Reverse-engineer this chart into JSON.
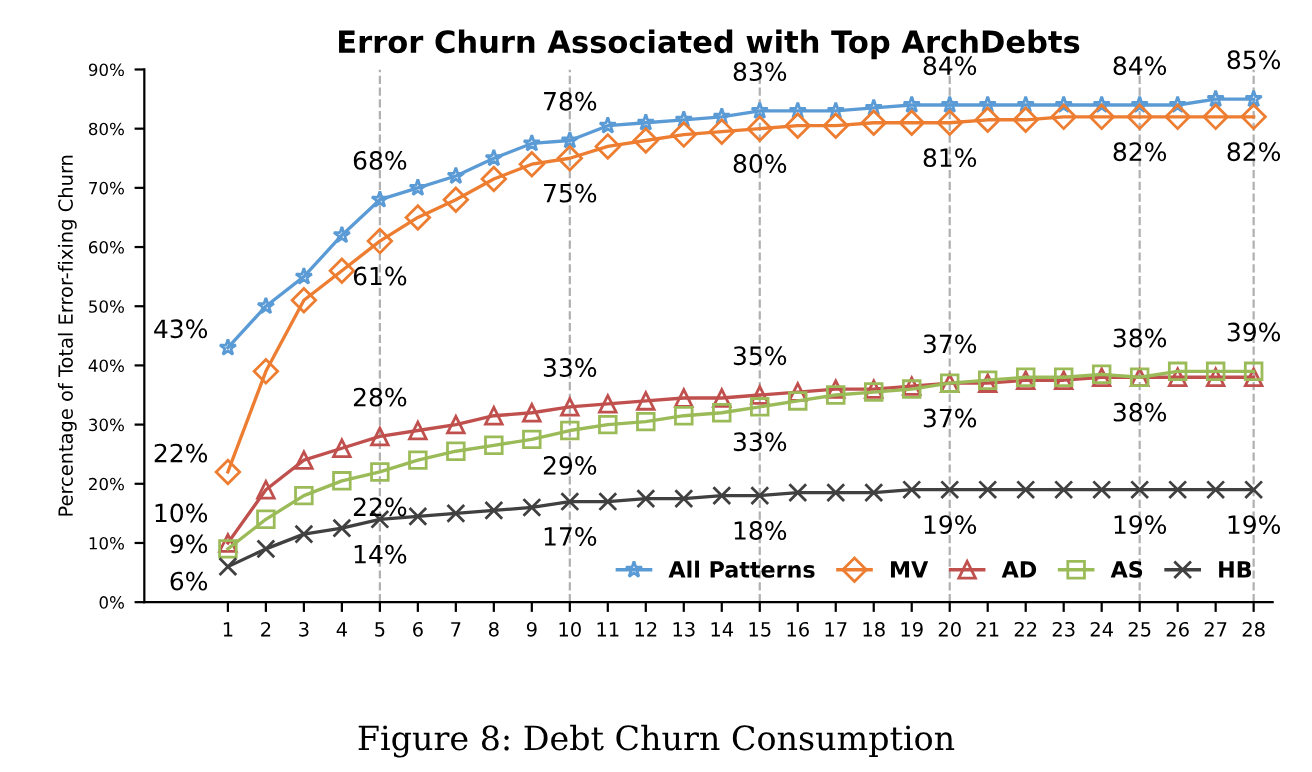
{
  "chart_data": {
    "type": "line",
    "title": "Error Churn Associated with Top ArchDebts",
    "ylabel": "Percentage of Total Error-fixing Churn",
    "categories": [
      "1",
      "2",
      "3",
      "4",
      "5",
      "6",
      "7",
      "8",
      "9",
      "10",
      "11",
      "12",
      "13",
      "14",
      "15",
      "16",
      "17",
      "18",
      "19",
      "20",
      "21",
      "22",
      "23",
      "24",
      "25",
      "26",
      "27",
      "28"
    ],
    "ylim": [
      0,
      90
    ],
    "yticks": [
      {
        "value": 0,
        "label": "0%"
      },
      {
        "value": 10,
        "label": "10%"
      },
      {
        "value": 20,
        "label": "20%"
      },
      {
        "value": 30,
        "label": "30%"
      },
      {
        "value": 40,
        "label": "40%"
      },
      {
        "value": 50,
        "label": "50%"
      },
      {
        "value": 60,
        "label": "60%"
      },
      {
        "value": 70,
        "label": "70%"
      },
      {
        "value": 80,
        "label": "80%"
      },
      {
        "value": 90,
        "label": "90%"
      }
    ],
    "grid": false,
    "legend": "bottom",
    "line_style": "solid",
    "ref_lines": [
      {
        "axis": "x",
        "value": "5",
        "color": "#b0b0b0",
        "line_style": "dashed"
      },
      {
        "axis": "x",
        "value": "10",
        "color": "#b0b0b0",
        "line_style": "dashed"
      },
      {
        "axis": "x",
        "value": "15",
        "color": "#b0b0b0",
        "line_style": "dashed"
      },
      {
        "axis": "x",
        "value": "20",
        "color": "#b0b0b0",
        "line_style": "dashed"
      },
      {
        "axis": "x",
        "value": "25",
        "color": "#b0b0b0",
        "line_style": "dashed"
      },
      {
        "axis": "x",
        "value": "28",
        "color": "#b0b0b0",
        "line_style": "dashed"
      }
    ],
    "series": [
      {
        "name": "All Patterns",
        "color": "#5b9bd5",
        "marker": "star",
        "values": [
          43,
          50,
          55,
          62,
          68,
          70,
          72,
          75,
          77.5,
          78,
          80.5,
          81,
          81.5,
          82,
          83,
          83,
          83,
          83.5,
          84,
          84,
          84,
          84,
          84,
          84,
          84,
          84,
          85,
          85
        ],
        "value_labels": [
          "43%",
          null,
          null,
          null,
          "68%",
          null,
          null,
          null,
          null,
          "78%",
          null,
          null,
          null,
          null,
          "83%",
          null,
          null,
          null,
          null,
          "84%",
          null,
          null,
          null,
          null,
          "84%",
          null,
          null,
          "85%"
        ]
      },
      {
        "name": "MV",
        "color": "#ed7d31",
        "marker": "diamond",
        "values": [
          22,
          39,
          51,
          56,
          61,
          65,
          68,
          71.5,
          74,
          75,
          77,
          78,
          79,
          79.5,
          80,
          80.5,
          80.5,
          81,
          81,
          81,
          81.5,
          81.5,
          82,
          82,
          82,
          82,
          82,
          82
        ],
        "value_labels": [
          "22%",
          null,
          null,
          null,
          "61%",
          null,
          null,
          null,
          null,
          "75%",
          null,
          null,
          null,
          null,
          "80%",
          null,
          null,
          null,
          null,
          "81%",
          null,
          null,
          null,
          null,
          "82%",
          null,
          null,
          "82%"
        ]
      },
      {
        "name": "AD",
        "color": "#c0504d",
        "marker": "triangle",
        "values": [
          10,
          19,
          24,
          26,
          28,
          29,
          30,
          31.5,
          32,
          33,
          33.5,
          34,
          34.5,
          34.5,
          35,
          35.5,
          36,
          36,
          36.5,
          37,
          37,
          37.5,
          37.5,
          38,
          38,
          38,
          38,
          38
        ],
        "value_labels": [
          "10%",
          null,
          null,
          null,
          "28%",
          null,
          null,
          null,
          null,
          "33%",
          null,
          null,
          null,
          null,
          "35%",
          null,
          null,
          null,
          null,
          "37%",
          null,
          null,
          null,
          null,
          "38%",
          null,
          null,
          null
        ]
      },
      {
        "name": "AS",
        "color": "#9bbb59",
        "marker": "square",
        "values": [
          9,
          14,
          18,
          20.5,
          22,
          24,
          25.5,
          26.5,
          27.5,
          29,
          30,
          30.5,
          31.5,
          32,
          33,
          34,
          35,
          35.5,
          36,
          37,
          37.5,
          38,
          38,
          38.5,
          38,
          39,
          39,
          39
        ],
        "value_labels": [
          "9%",
          null,
          null,
          null,
          "22%",
          null,
          null,
          null,
          null,
          "29%",
          null,
          null,
          null,
          null,
          "33%",
          null,
          null,
          null,
          null,
          "37%",
          null,
          null,
          null,
          null,
          "38%",
          null,
          null,
          "39%"
        ]
      },
      {
        "name": "HB",
        "color": "#404040",
        "marker": "cross",
        "values": [
          6,
          9,
          11.5,
          12.5,
          14,
          14.5,
          15,
          15.5,
          16,
          17,
          17,
          17.5,
          17.5,
          18,
          18,
          18.5,
          18.5,
          18.5,
          19,
          19,
          19,
          19,
          19,
          19,
          19,
          19,
          19,
          19
        ],
        "value_labels": [
          "6%",
          null,
          null,
          null,
          "14%",
          null,
          null,
          null,
          null,
          "17%",
          null,
          null,
          null,
          null,
          "18%",
          null,
          null,
          null,
          null,
          "19%",
          null,
          null,
          null,
          null,
          "19%",
          null,
          null,
          "19%"
        ]
      }
    ],
    "annotations": [
      "Figure 8: Debt Churn Consumption"
    ]
  }
}
